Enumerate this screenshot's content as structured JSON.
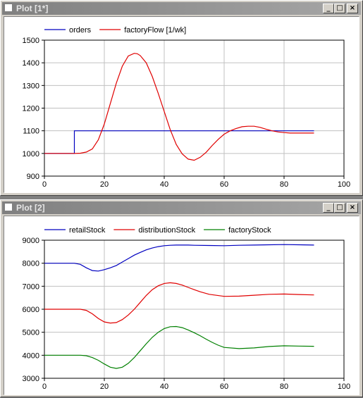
{
  "windows": [
    {
      "title": "Plot [1*]",
      "chart_data": {
        "type": "line",
        "xlim": [
          0,
          100
        ],
        "ylim": [
          900,
          1500
        ],
        "x_ticks": [
          0,
          20,
          40,
          60,
          80,
          100
        ],
        "y_ticks": [
          900,
          1000,
          1100,
          1200,
          1300,
          1400,
          1500
        ],
        "grid": true,
        "legend_position": "top-left",
        "series": [
          {
            "name": "orders",
            "color": "#0000c0",
            "x": [
              0,
              10,
              10,
              90
            ],
            "y": [
              1000,
              1000,
              1100,
              1100
            ]
          },
          {
            "name": "factoryFlow [1/wk]",
            "color": "#e00000",
            "x": [
              0,
              10,
              12,
              14,
              16,
              18,
              20,
              22,
              24,
              26,
              28,
              30,
              31,
              32,
              34,
              36,
              38,
              40,
              42,
              44,
              46,
              48,
              50,
              52,
              54,
              56,
              58,
              60,
              62,
              64,
              66,
              68,
              70,
              72,
              74,
              76,
              78,
              80,
              82,
              84,
              86,
              88,
              90
            ],
            "y": [
              1000,
              1000,
              1001,
              1006,
              1020,
              1060,
              1130,
              1220,
              1310,
              1385,
              1430,
              1442,
              1440,
              1432,
              1400,
              1340,
              1265,
              1185,
              1105,
              1040,
              998,
              975,
              970,
              983,
              1005,
              1035,
              1062,
              1085,
              1100,
              1110,
              1118,
              1120,
              1120,
              1115,
              1107,
              1100,
              1095,
              1092,
              1090,
              1090,
              1090,
              1090,
              1090
            ]
          }
        ]
      }
    },
    {
      "title": "Plot [2]",
      "chart_data": {
        "type": "line",
        "xlim": [
          0,
          100
        ],
        "ylim": [
          3000,
          9000
        ],
        "x_ticks": [
          0,
          20,
          40,
          60,
          80,
          100
        ],
        "y_ticks": [
          3000,
          4000,
          5000,
          6000,
          7000,
          8000,
          9000
        ],
        "grid": true,
        "legend_position": "top-left",
        "series": [
          {
            "name": "retailStock",
            "color": "#0000c0",
            "x": [
              0,
              10,
              12,
              14,
              16,
              18,
              20,
              22,
              24,
              26,
              28,
              30,
              32,
              34,
              36,
              38,
              40,
              42,
              44,
              46,
              48,
              50,
              55,
              60,
              65,
              70,
              75,
              80,
              85,
              90
            ],
            "y": [
              8000,
              8000,
              7950,
              7800,
              7680,
              7660,
              7720,
              7800,
              7900,
              8050,
              8200,
              8350,
              8470,
              8580,
              8660,
              8720,
              8760,
              8780,
              8790,
              8790,
              8790,
              8780,
              8770,
              8760,
              8780,
              8790,
              8800,
              8810,
              8800,
              8790
            ]
          },
          {
            "name": "distributionStock",
            "color": "#e00000",
            "x": [
              0,
              12,
              14,
              16,
              18,
              20,
              22,
              24,
              26,
              28,
              30,
              32,
              34,
              36,
              38,
              40,
              42,
              44,
              46,
              48,
              50,
              52,
              55,
              60,
              65,
              70,
              75,
              80,
              85,
              90
            ],
            "y": [
              6000,
              6000,
              5950,
              5800,
              5600,
              5450,
              5400,
              5420,
              5550,
              5750,
              6000,
              6300,
              6600,
              6850,
              7020,
              7120,
              7150,
              7120,
              7050,
              6950,
              6850,
              6760,
              6650,
              6560,
              6570,
              6610,
              6650,
              6660,
              6640,
              6620
            ]
          },
          {
            "name": "factoryStock",
            "color": "#008000",
            "x": [
              0,
              12,
              14,
              16,
              18,
              20,
              22,
              24,
              26,
              28,
              30,
              32,
              34,
              36,
              38,
              40,
              42,
              44,
              46,
              48,
              50,
              52,
              54,
              56,
              58,
              60,
              65,
              70,
              75,
              80,
              85,
              90
            ],
            "y": [
              4000,
              4000,
              3980,
              3900,
              3780,
              3620,
              3480,
              3430,
              3480,
              3650,
              3900,
              4200,
              4500,
              4780,
              5000,
              5160,
              5240,
              5250,
              5200,
              5100,
              4980,
              4850,
              4700,
              4560,
              4440,
              4340,
              4290,
              4320,
              4380,
              4410,
              4400,
              4390
            ]
          }
        ]
      }
    }
  ]
}
